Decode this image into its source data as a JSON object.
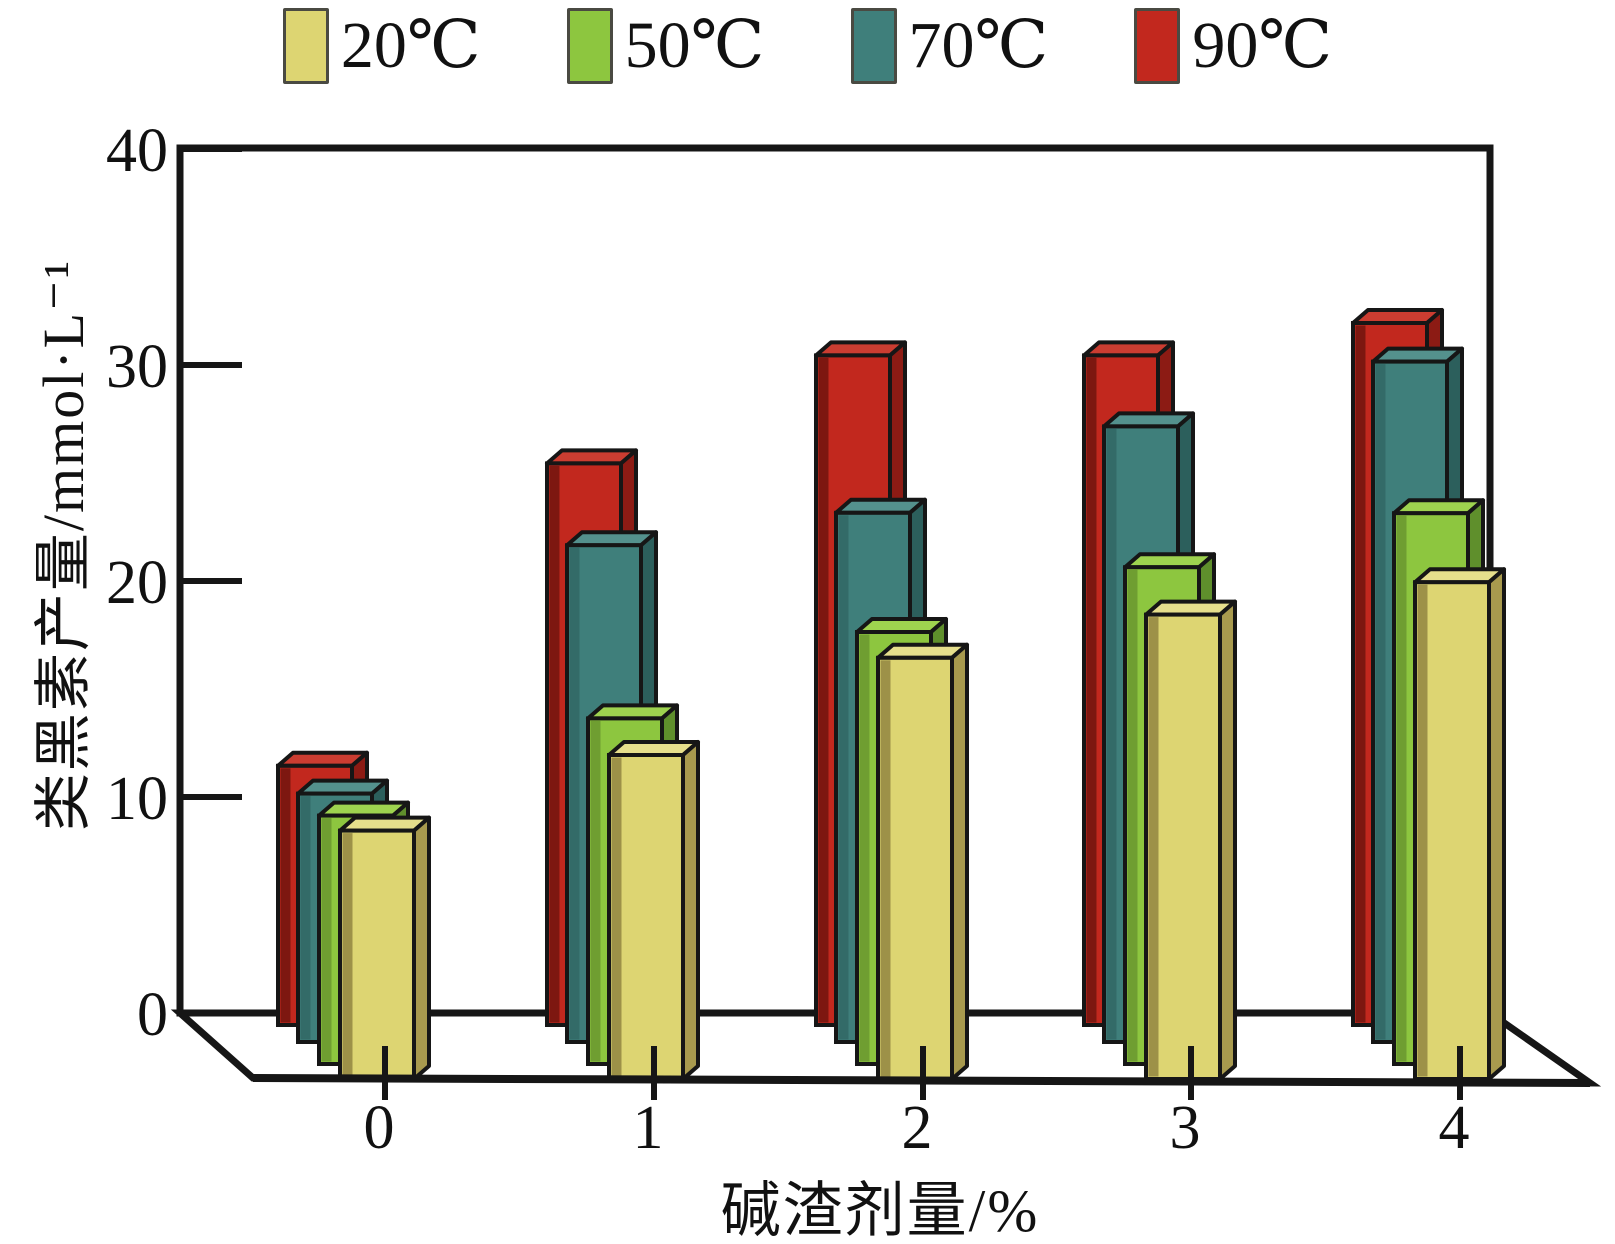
{
  "figure": {
    "background": "#ffffff",
    "frame_color": "#161616"
  },
  "y_axis": {
    "title": "类黑素产量/mmol·L⁻¹",
    "tick_labels": [
      "0",
      "10",
      "20",
      "30",
      "40"
    ],
    "min": 0,
    "max": 40
  },
  "x_axis": {
    "title": "碱渣剂量/%",
    "categories": [
      "0",
      "1",
      "2",
      "3",
      "4"
    ]
  },
  "legend": {
    "position": "top",
    "items": [
      "20℃",
      "50℃",
      "70℃",
      "90℃"
    ]
  },
  "chart_data": {
    "type": "bar",
    "style": "pseudo-3d-grouped-bars",
    "title": "",
    "xlabel": "碱渣剂量/%",
    "ylabel": "类黑素产量/mmol·L⁻¹",
    "ylim": [
      0,
      40
    ],
    "y_ticks": [
      0,
      10,
      20,
      30,
      40
    ],
    "grid": false,
    "legend_position": "top",
    "categories": [
      "0",
      "1",
      "2",
      "3",
      "4"
    ],
    "series": [
      {
        "name": "20℃",
        "values": [
          11.5,
          15,
          19.5,
          21.5,
          23
        ],
        "colors": {
          "fill": "#ddd572",
          "top": "#e6df8c",
          "side": "#a89a4e",
          "strip": "#9d9148"
        }
      },
      {
        "name": "50℃",
        "values": [
          11.5,
          16,
          20,
          23,
          25.5
        ],
        "colors": {
          "fill": "#8dc63f",
          "top": "#9ed34f",
          "side": "#5f8f2c",
          "strip": "#6f9e31"
        }
      },
      {
        "name": "70℃",
        "values": [
          11.5,
          23,
          24.5,
          28.5,
          31.5
        ],
        "colors": {
          "fill": "#3f7f7b",
          "top": "#54918d",
          "side": "#2c5f5c",
          "strip": "#336b68"
        }
      },
      {
        "name": "90℃",
        "values": [
          12,
          26,
          31,
          31,
          32.5
        ],
        "colors": {
          "fill": "#c2281e",
          "top": "#cb3d31",
          "side": "#8c1b14",
          "strip": "#7d1710"
        }
      }
    ]
  }
}
